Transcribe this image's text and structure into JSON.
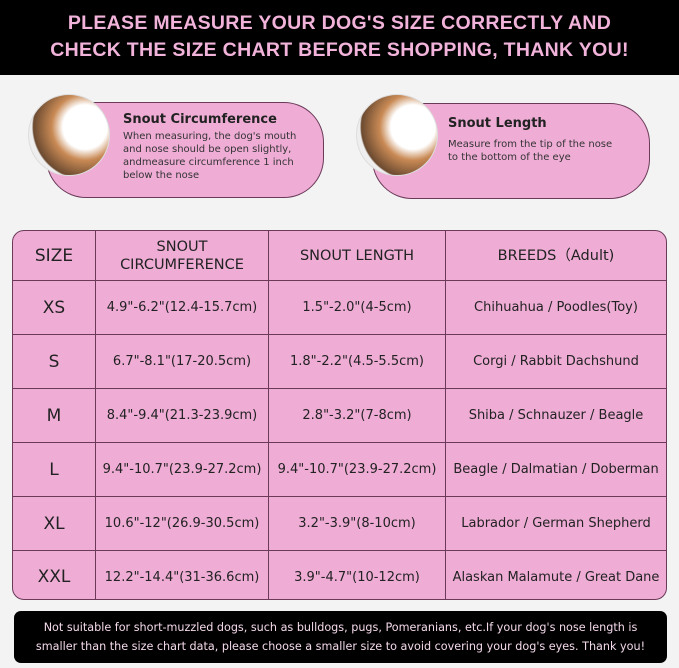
{
  "banner": {
    "line1": "PLEASE MEASURE YOUR DOG'S SIZE CORRECTLY AND",
    "line2": "CHECK THE SIZE CHART BEFORE SHOPPING, THANK YOU!"
  },
  "cards": [
    {
      "title": "Snout Circumference",
      "lines": [
        "When measuring, the dog's mouth",
        "and nose should be open slightly,",
        "andmeasure circumference 1 inch",
        "below the nose"
      ]
    },
    {
      "title": "Snout Length",
      "lines": [
        "Measure from the tip of the nose",
        "to the bottom of the eye"
      ]
    }
  ],
  "table": {
    "headers": [
      "SIZE",
      "SNOUT CIRCUMFERENCE",
      "SNOUT LENGTH",
      "BREEDS（Adult)"
    ],
    "rows": [
      [
        "XS",
        "4.9\"-6.2\"(12.4-15.7cm)",
        "1.5\"-2.0\"(4-5cm)",
        "Chihuahua / Poodles(Toy)"
      ],
      [
        "S",
        "6.7\"-8.1\"(17-20.5cm)",
        "1.8\"-2.2\"(4.5-5.5cm)",
        "Corgi / Rabbit Dachshund"
      ],
      [
        "M",
        "8.4\"-9.4\"(21.3-23.9cm)",
        "2.8\"-3.2\"(7-8cm)",
        "Shiba / Schnauzer / Beagle"
      ],
      [
        "L",
        "9.4\"-10.7\"(23.9-27.2cm)",
        "9.4\"-10.7\"(23.9-27.2cm)",
        "Beagle / Dalmatian / Doberman"
      ],
      [
        "XL",
        "10.6\"-12\"(26.9-30.5cm)",
        "3.2\"-3.9\"(8-10cm)",
        "Labrador / German Shepherd"
      ],
      [
        "XXL",
        "12.2\"-14.4\"(31-36.6cm)",
        "3.9\"-4.7\"(10-12cm)",
        "Alaskan Malamute / Great Dane"
      ]
    ]
  },
  "note": {
    "line1": "Not suitable for short-muzzled dogs, such as bulldogs, pugs, Pomeranians, etc.If your dog's nose length is",
    "line2": "smaller than the size chart data, please choose a smaller size to avoid covering your dog's eyes. Thank you!"
  },
  "colors": {
    "pink": "#efadd6",
    "banner_text": "#f2b3da",
    "dark": "#000000"
  }
}
